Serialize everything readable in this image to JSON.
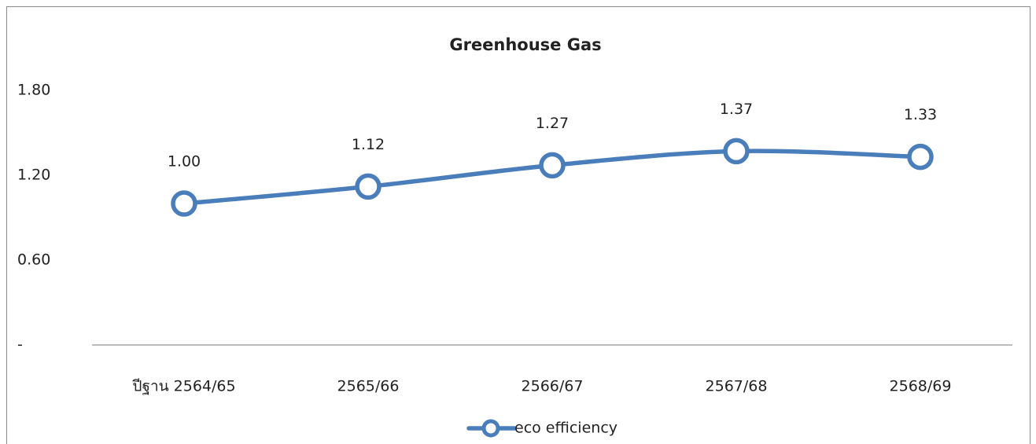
{
  "chart_data": {
    "type": "line",
    "title": "Greenhouse Gas",
    "categories": [
      "ปีฐาน 2564/65",
      "2565/66",
      "2566/67",
      "2567/68",
      "2568/69"
    ],
    "series": [
      {
        "name": "eco efficiency",
        "color": "#4a7ebb",
        "values": [
          1,
          1.12,
          1.27,
          1.37,
          1.33
        ],
        "value_labels": [
          "1.00",
          "1.12",
          "1.27",
          "1.37",
          "1.33"
        ]
      }
    ],
    "ylim": [
      0,
      1.8
    ],
    "yticks": [
      {
        "value": 0,
        "label": "-"
      },
      {
        "value": 0.6,
        "label": "0.60"
      },
      {
        "value": 1.2,
        "label": "1.20"
      },
      {
        "value": 1.8,
        "label": "1.80"
      }
    ],
    "smooth": true,
    "legend": "bottom"
  }
}
